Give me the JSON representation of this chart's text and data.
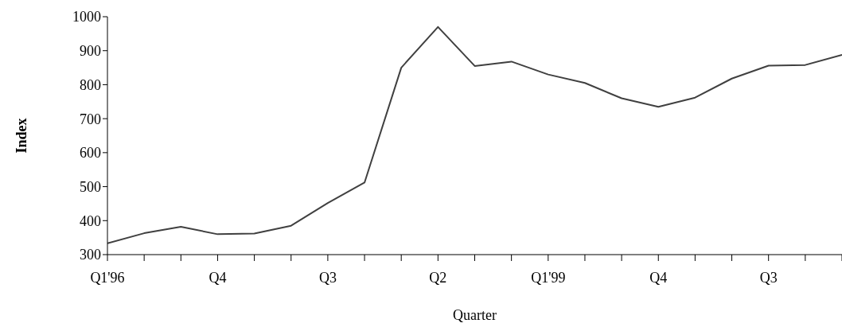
{
  "chart_data": {
    "type": "line",
    "xlabel": "Quarter",
    "ylabel": "Index",
    "categories": [
      "Q1'96",
      null,
      null,
      "Q4",
      null,
      null,
      "Q3",
      null,
      null,
      "Q2",
      null,
      null,
      "Q1'99",
      null,
      null,
      "Q4",
      null,
      null,
      "Q3",
      null,
      null
    ],
    "series": [
      {
        "color": "#404040",
        "values": [
          333,
          363,
          382,
          360,
          362,
          385,
          452,
          512,
          850,
          970,
          855,
          868,
          830,
          805,
          760,
          735,
          762,
          818,
          856,
          858,
          888
        ]
      }
    ],
    "ylim": [
      300,
      1000
    ],
    "yticks": [
      300,
      400,
      500,
      600,
      700,
      800,
      900,
      1000
    ],
    "grid": false,
    "legend": false,
    "marker": "none",
    "line_style": "solid"
  }
}
